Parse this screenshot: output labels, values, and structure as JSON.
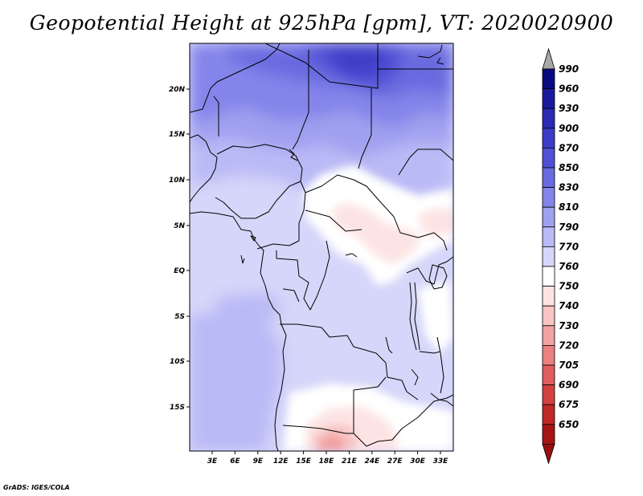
{
  "title": "Geopotential Height at 925hPa [gpm], VT: 2020020900",
  "credit": "GrADS: IGES/COLA",
  "map": {
    "lat_labels": [
      "20N",
      "15N",
      "10N",
      "5N",
      "EQ",
      "5S",
      "10S",
      "15S"
    ],
    "lon_labels": [
      "3E",
      "6E",
      "9E",
      "12E",
      "15E",
      "18E",
      "21E",
      "24E",
      "27E",
      "30E",
      "33E"
    ]
  },
  "colorbar": {
    "levels": [
      {
        "label": "990",
        "color": "#0a0a80"
      },
      {
        "label": "960",
        "color": "#1a1a9e"
      },
      {
        "label": "930",
        "color": "#2a2ab4"
      },
      {
        "label": "900",
        "color": "#3c3cc8"
      },
      {
        "label": "870",
        "color": "#5050d6"
      },
      {
        "label": "850",
        "color": "#6a6ae0"
      },
      {
        "label": "830",
        "color": "#8484ea"
      },
      {
        "label": "810",
        "color": "#a0a0f0"
      },
      {
        "label": "790",
        "color": "#babaf6"
      },
      {
        "label": "770",
        "color": "#d6d6fa"
      },
      {
        "label": "760",
        "color": "#ffffff"
      },
      {
        "label": "750",
        "color": "#fde4e4"
      },
      {
        "label": "740",
        "color": "#f8c4c4"
      },
      {
        "label": "730",
        "color": "#f2a2a2"
      },
      {
        "label": "720",
        "color": "#ea8080"
      },
      {
        "label": "705",
        "color": "#e05e5e"
      },
      {
        "label": "690",
        "color": "#d44040"
      },
      {
        "label": "675",
        "color": "#c02828"
      },
      {
        "label": "650",
        "color": "#a81414"
      }
    ],
    "top_arrow_color": "#a8a8a8",
    "bottom_arrow_color": "#961010"
  }
}
